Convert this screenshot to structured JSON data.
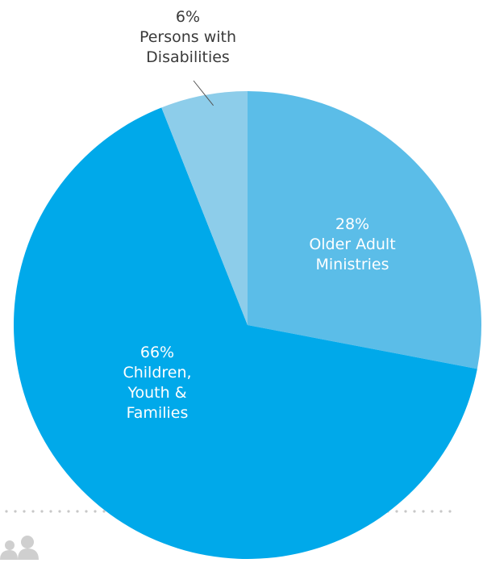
{
  "chart_data": {
    "type": "pie",
    "slices": [
      {
        "value": 28,
        "label_lines": [
          "28%",
          "Older Adult",
          "Ministries"
        ],
        "color": "#5bbde8",
        "label_position": "inside"
      },
      {
        "value": 66,
        "label_lines": [
          "66%",
          "Children,",
          "Youth &",
          "Families"
        ],
        "color": "#00a9ea",
        "label_position": "inside"
      },
      {
        "value": 6,
        "label_lines": [
          "6%",
          "Persons with",
          "Disabilities"
        ],
        "color": "#8dcdea",
        "label_position": "outside"
      }
    ],
    "legend": "none"
  },
  "colors": {
    "dots": "#c8c8c8",
    "leader_line": "#555555",
    "figures_icon": "#cfcfcf"
  }
}
